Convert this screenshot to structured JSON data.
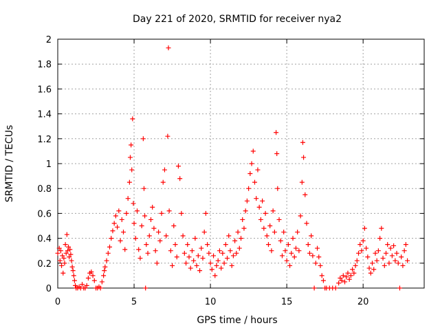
{
  "chart_data": {
    "type": "scatter",
    "title": "Day 221 of 2020, SRMTID for receiver nya2",
    "xlabel": "GPS time / hours",
    "ylabel": "SRMTID / TECUs",
    "xlim": [
      0,
      24
    ],
    "ylim": [
      0,
      2
    ],
    "x_ticks": [
      "0",
      "5",
      "10",
      "15",
      "20"
    ],
    "y_ticks": [
      "0",
      "0.2",
      "0.4",
      "0.6",
      "0.8",
      "1",
      "1.2",
      "1.4",
      "1.6",
      "1.8",
      "2"
    ],
    "grid": true,
    "marker_color": "#ff0000",
    "series": [
      {
        "name": "SRMTID",
        "points": [
          [
            0.0,
            0.28
          ],
          [
            0.1,
            0.32
          ],
          [
            0.15,
            0.22
          ],
          [
            0.2,
            0.3
          ],
          [
            0.25,
            0.18
          ],
          [
            0.3,
            0.26
          ],
          [
            0.35,
            0.12
          ],
          [
            0.4,
            0.24
          ],
          [
            0.45,
            0.2
          ],
          [
            0.5,
            0.35
          ],
          [
            0.55,
            0.28
          ],
          [
            0.6,
            0.43
          ],
          [
            0.65,
            0.3
          ],
          [
            0.7,
            0.33
          ],
          [
            0.75,
            0.25
          ],
          [
            0.8,
            0.31
          ],
          [
            0.85,
            0.27
          ],
          [
            0.9,
            0.22
          ],
          [
            0.95,
            0.17
          ],
          [
            1.0,
            0.14
          ],
          [
            1.05,
            0.1
          ],
          [
            1.1,
            0.06
          ],
          [
            1.15,
            0.02
          ],
          [
            1.2,
            0.0
          ],
          [
            1.3,
            0.0
          ],
          [
            1.4,
            0.01
          ],
          [
            1.5,
            0.0
          ],
          [
            1.6,
            0.03
          ],
          [
            1.7,
            0.0
          ],
          [
            1.8,
            0.0
          ],
          [
            1.9,
            0.02
          ],
          [
            2.0,
            0.08
          ],
          [
            2.1,
            0.12
          ],
          [
            2.2,
            0.13
          ],
          [
            2.3,
            0.1
          ],
          [
            2.4,
            0.06
          ],
          [
            2.5,
            0.0
          ],
          [
            2.6,
            0.0
          ],
          [
            2.7,
            0.01
          ],
          [
            2.8,
            0.0
          ],
          [
            2.9,
            0.05
          ],
          [
            3.0,
            0.1
          ],
          [
            3.05,
            0.14
          ],
          [
            3.1,
            0.17
          ],
          [
            3.2,
            0.22
          ],
          [
            3.3,
            0.28
          ],
          [
            3.4,
            0.33
          ],
          [
            3.5,
            0.4
          ],
          [
            3.6,
            0.46
          ],
          [
            3.7,
            0.52
          ],
          [
            3.8,
            0.58
          ],
          [
            3.9,
            0.49
          ],
          [
            4.0,
            0.62
          ],
          [
            4.1,
            0.38
          ],
          [
            4.2,
            0.55
          ],
          [
            4.3,
            0.45
          ],
          [
            4.4,
            0.31
          ],
          [
            4.5,
            0.6
          ],
          [
            4.6,
            0.72
          ],
          [
            4.7,
            0.85
          ],
          [
            4.75,
            1.05
          ],
          [
            4.8,
            1.15
          ],
          [
            4.85,
            0.95
          ],
          [
            4.9,
            1.36
          ],
          [
            4.95,
            0.68
          ],
          [
            5.0,
            0.52
          ],
          [
            5.1,
            0.4
          ],
          [
            5.2,
            0.62
          ],
          [
            5.3,
            0.31
          ],
          [
            5.4,
            0.24
          ],
          [
            5.5,
            0.5
          ],
          [
            5.6,
            1.2
          ],
          [
            5.65,
            0.8
          ],
          [
            5.7,
            0.58
          ],
          [
            5.75,
            0.0
          ],
          [
            5.8,
            0.35
          ],
          [
            5.9,
            0.28
          ],
          [
            6.0,
            0.42
          ],
          [
            6.1,
            0.55
          ],
          [
            6.2,
            0.65
          ],
          [
            6.3,
            0.48
          ],
          [
            6.4,
            0.3
          ],
          [
            6.5,
            0.2
          ],
          [
            6.6,
            0.45
          ],
          [
            6.7,
            0.38
          ],
          [
            6.8,
            0.6
          ],
          [
            6.9,
            0.85
          ],
          [
            7.0,
            0.95
          ],
          [
            7.1,
            0.42
          ],
          [
            7.2,
            1.22
          ],
          [
            7.25,
            1.93
          ],
          [
            7.3,
            0.62
          ],
          [
            7.4,
            0.3
          ],
          [
            7.5,
            0.18
          ],
          [
            7.6,
            0.5
          ],
          [
            7.7,
            0.35
          ],
          [
            7.8,
            0.25
          ],
          [
            7.9,
            0.98
          ],
          [
            8.0,
            0.88
          ],
          [
            8.1,
            0.6
          ],
          [
            8.2,
            0.42
          ],
          [
            8.3,
            0.28
          ],
          [
            8.4,
            0.2
          ],
          [
            8.5,
            0.35
          ],
          [
            8.6,
            0.25
          ],
          [
            8.7,
            0.16
          ],
          [
            8.8,
            0.3
          ],
          [
            8.9,
            0.22
          ],
          [
            9.0,
            0.4
          ],
          [
            9.1,
            0.18
          ],
          [
            9.2,
            0.26
          ],
          [
            9.3,
            0.14
          ],
          [
            9.4,
            0.32
          ],
          [
            9.5,
            0.24
          ],
          [
            9.6,
            0.45
          ],
          [
            9.7,
            0.6
          ],
          [
            9.8,
            0.35
          ],
          [
            9.9,
            0.28
          ],
          [
            10.0,
            0.2
          ],
          [
            10.1,
            0.15
          ],
          [
            10.2,
            0.26
          ],
          [
            10.3,
            0.1
          ],
          [
            10.4,
            0.18
          ],
          [
            10.5,
            0.22
          ],
          [
            10.6,
            0.3
          ],
          [
            10.7,
            0.16
          ],
          [
            10.8,
            0.28
          ],
          [
            10.9,
            0.2
          ],
          [
            11.0,
            0.35
          ],
          [
            11.1,
            0.24
          ],
          [
            11.2,
            0.42
          ],
          [
            11.3,
            0.3
          ],
          [
            11.4,
            0.18
          ],
          [
            11.5,
            0.26
          ],
          [
            11.6,
            0.38
          ],
          [
            11.7,
            0.28
          ],
          [
            11.8,
            0.45
          ],
          [
            11.9,
            0.32
          ],
          [
            12.0,
            0.4
          ],
          [
            12.1,
            0.55
          ],
          [
            12.2,
            0.48
          ],
          [
            12.3,
            0.62
          ],
          [
            12.4,
            0.7
          ],
          [
            12.5,
            0.8
          ],
          [
            12.6,
            0.92
          ],
          [
            12.7,
            1.0
          ],
          [
            12.8,
            1.1
          ],
          [
            12.9,
            0.85
          ],
          [
            13.0,
            0.72
          ],
          [
            13.1,
            0.95
          ],
          [
            13.2,
            0.65
          ],
          [
            13.3,
            0.55
          ],
          [
            13.4,
            0.7
          ],
          [
            13.5,
            0.48
          ],
          [
            13.6,
            0.6
          ],
          [
            13.7,
            0.42
          ],
          [
            13.8,
            0.35
          ],
          [
            13.9,
            0.5
          ],
          [
            14.0,
            0.3
          ],
          [
            14.1,
            0.62
          ],
          [
            14.2,
            0.45
          ],
          [
            14.3,
            1.25
          ],
          [
            14.35,
            1.08
          ],
          [
            14.4,
            0.8
          ],
          [
            14.5,
            0.55
          ],
          [
            14.6,
            0.38
          ],
          [
            14.7,
            0.26
          ],
          [
            14.8,
            0.45
          ],
          [
            14.9,
            0.3
          ],
          [
            15.0,
            0.22
          ],
          [
            15.1,
            0.35
          ],
          [
            15.2,
            0.18
          ],
          [
            15.3,
            0.28
          ],
          [
            15.4,
            0.4
          ],
          [
            15.5,
            0.25
          ],
          [
            15.6,
            0.32
          ],
          [
            15.7,
            0.45
          ],
          [
            15.8,
            0.3
          ],
          [
            15.9,
            0.58
          ],
          [
            16.0,
            0.85
          ],
          [
            16.05,
            1.17
          ],
          [
            16.1,
            1.05
          ],
          [
            16.2,
            0.75
          ],
          [
            16.3,
            0.52
          ],
          [
            16.4,
            0.35
          ],
          [
            16.5,
            0.28
          ],
          [
            16.6,
            0.42
          ],
          [
            16.7,
            0.26
          ],
          [
            16.8,
            0.0
          ],
          [
            16.9,
            0.2
          ],
          [
            17.0,
            0.32
          ],
          [
            17.1,
            0.25
          ],
          [
            17.2,
            0.18
          ],
          [
            17.3,
            0.1
          ],
          [
            17.4,
            0.06
          ],
          [
            17.5,
            0.0
          ],
          [
            17.6,
            0.0
          ],
          [
            17.8,
            0.0
          ],
          [
            18.0,
            0.0
          ],
          [
            18.2,
            0.0
          ],
          [
            18.4,
            0.04
          ],
          [
            18.5,
            0.08
          ],
          [
            18.6,
            0.06
          ],
          [
            18.7,
            0.1
          ],
          [
            18.8,
            0.05
          ],
          [
            18.9,
            0.09
          ],
          [
            19.0,
            0.12
          ],
          [
            19.1,
            0.07
          ],
          [
            19.2,
            0.1
          ],
          [
            19.3,
            0.15
          ],
          [
            19.4,
            0.12
          ],
          [
            19.5,
            0.18
          ],
          [
            19.6,
            0.22
          ],
          [
            19.7,
            0.28
          ],
          [
            19.8,
            0.35
          ],
          [
            19.9,
            0.3
          ],
          [
            20.0,
            0.38
          ],
          [
            20.1,
            0.48
          ],
          [
            20.2,
            0.32
          ],
          [
            20.3,
            0.25
          ],
          [
            20.4,
            0.16
          ],
          [
            20.5,
            0.12
          ],
          [
            20.6,
            0.2
          ],
          [
            20.7,
            0.15
          ],
          [
            20.8,
            0.28
          ],
          [
            20.9,
            0.22
          ],
          [
            21.0,
            0.3
          ],
          [
            21.1,
            0.4
          ],
          [
            21.2,
            0.48
          ],
          [
            21.3,
            0.24
          ],
          [
            21.4,
            0.18
          ],
          [
            21.5,
            0.28
          ],
          [
            21.6,
            0.35
          ],
          [
            21.7,
            0.2
          ],
          [
            21.8,
            0.32
          ],
          [
            21.9,
            0.26
          ],
          [
            22.0,
            0.34
          ],
          [
            22.1,
            0.22
          ],
          [
            22.2,
            0.28
          ],
          [
            22.3,
            0.2
          ],
          [
            22.4,
            0.0
          ],
          [
            22.5,
            0.25
          ],
          [
            22.6,
            0.18
          ],
          [
            22.7,
            0.3
          ],
          [
            22.8,
            0.35
          ],
          [
            22.9,
            0.22
          ]
        ]
      }
    ]
  }
}
